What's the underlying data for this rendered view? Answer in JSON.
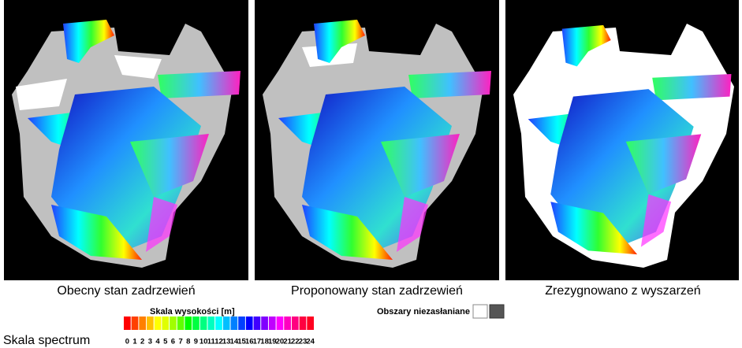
{
  "captions": [
    "Obecny stan zadrzewień",
    "Proponowany stan zadrzewień",
    "Zrezygnowano z wyszarzeń"
  ],
  "legend": {
    "height_scale_title": "Skala wysokości [m]",
    "unobstructed_title": "Obszary niezasłaniane",
    "spectrum_label": "Skala spectrum",
    "scale": [
      {
        "label": "0",
        "color": "#ff0000"
      },
      {
        "label": "1",
        "color": "#ff4000"
      },
      {
        "label": "2",
        "color": "#ff8000"
      },
      {
        "label": "3",
        "color": "#ffc000"
      },
      {
        "label": "4",
        "color": "#ffff00"
      },
      {
        "label": "5",
        "color": "#e0ff00"
      },
      {
        "label": "6",
        "color": "#a0ff00"
      },
      {
        "label": "7",
        "color": "#60ff00"
      },
      {
        "label": "8",
        "color": "#00ff00"
      },
      {
        "label": "9",
        "color": "#00ff40"
      },
      {
        "label": "10",
        "color": "#00ff80"
      },
      {
        "label": "11",
        "color": "#00ffc0"
      },
      {
        "label": "12",
        "color": "#00ffff"
      },
      {
        "label": "13",
        "color": "#00c0ff"
      },
      {
        "label": "14",
        "color": "#0080ff"
      },
      {
        "label": "15",
        "color": "#0040ff"
      },
      {
        "label": "16",
        "color": "#0000ff"
      },
      {
        "label": "17",
        "color": "#4000ff"
      },
      {
        "label": "18",
        "color": "#8000ff"
      },
      {
        "label": "19",
        "color": "#c000ff"
      },
      {
        "label": "20",
        "color": "#ff00ff"
      },
      {
        "label": "21",
        "color": "#ff00c0"
      },
      {
        "label": "22",
        "color": "#ff0080"
      },
      {
        "label": "23",
        "color": "#ff0040"
      },
      {
        "label": "24",
        "color": "#ff0020"
      }
    ]
  }
}
